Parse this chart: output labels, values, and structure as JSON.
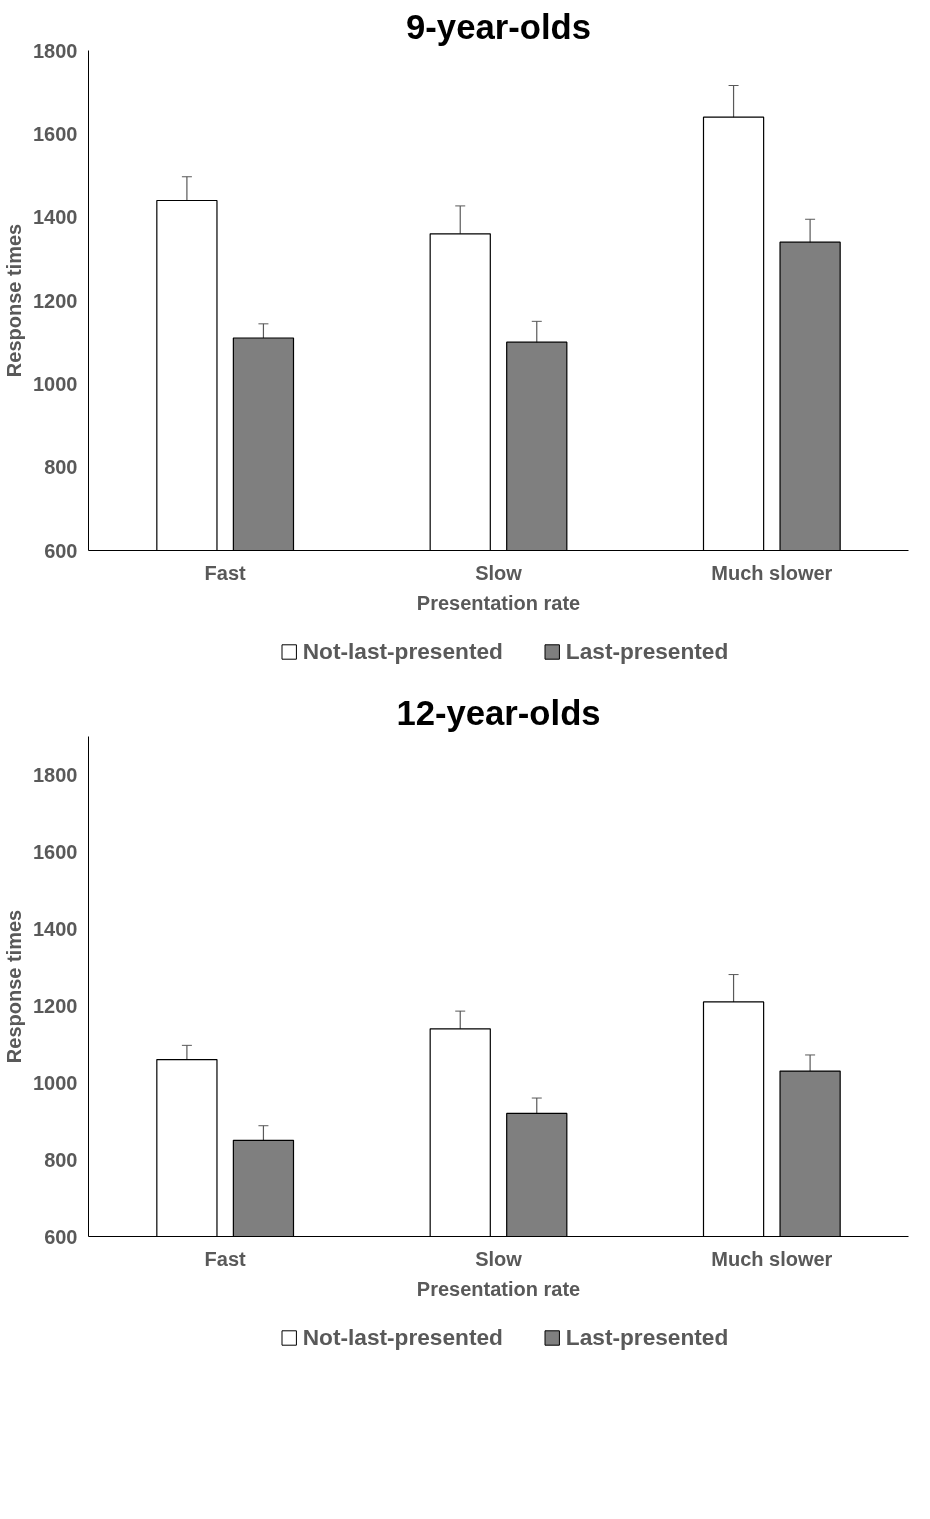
{
  "chart_data": [
    {
      "type": "bar",
      "title": "9-year-olds",
      "xlabel": "Presentation rate",
      "ylabel": "Response times",
      "categories": [
        "Fast",
        "Slow",
        "Much slower"
      ],
      "ylim": [
        600,
        1800
      ],
      "yticks": [
        600,
        800,
        1000,
        1200,
        1400,
        1600,
        1800
      ],
      "grid": false,
      "legend": "bottom",
      "series": [
        {
          "name": "Not-last-presented",
          "color": "#ffffff",
          "values": [
            1440,
            1360,
            1640
          ],
          "errors": [
            57,
            67,
            76
          ]
        },
        {
          "name": "Last-presented",
          "color": "#7f7f7f",
          "values": [
            1110,
            1100,
            1340
          ],
          "errors": [
            34,
            50,
            55
          ]
        }
      ]
    },
    {
      "type": "bar",
      "title": "12-year-olds",
      "xlabel": "Presentation rate",
      "ylabel": "Response times",
      "categories": [
        "Fast",
        "Slow",
        "Much slower"
      ],
      "ylim": [
        600,
        1900
      ],
      "yticks": [
        600,
        800,
        1000,
        1200,
        1400,
        1600,
        1800
      ],
      "grid": false,
      "legend": "bottom",
      "series": [
        {
          "name": "Not-last-presented",
          "color": "#ffffff",
          "values": [
            1060,
            1140,
            1210
          ],
          "errors": [
            37,
            46,
            71
          ]
        },
        {
          "name": "Last-presented",
          "color": "#7f7f7f",
          "values": [
            850,
            920,
            1030
          ],
          "errors": [
            38,
            40,
            42
          ]
        }
      ]
    }
  ]
}
